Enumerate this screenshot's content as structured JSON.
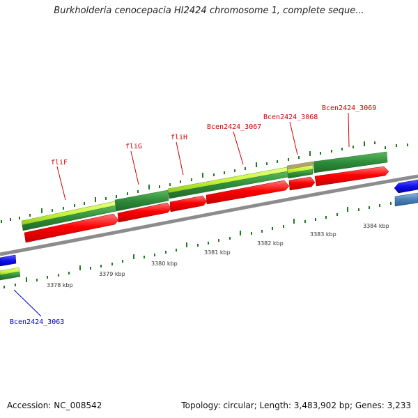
{
  "title": "Burkholderia cenocepacia HI2424 chromosome 1, complete seque...",
  "footer": {
    "accession": "Accession: NC_008542",
    "summary": "Topology: circular; Length: 3,483,902 bp; Genes: 3,233"
  },
  "colors": {
    "backbone": "#8c8c8c",
    "cds": "#ff0000",
    "gene_light": "#c8f53c",
    "gene_dark": "#2e8b3a",
    "minus_strand": "#1010ee",
    "minus_alt": "#4a7fb8",
    "label_plus": "#cc0000",
    "label_minus": "#0000cc",
    "tick": "#1e7a1e",
    "kbp_label": "#333333"
  },
  "scale": {
    "kbp_labels": [
      "3378 kbp",
      "3379 kbp",
      "3380 kbp",
      "3381 kbp",
      "3382 kbp",
      "3383 kbp",
      "3384 kbp"
    ]
  },
  "gene_labels": {
    "plus_strand": [
      "fliF",
      "fliG",
      "fliH",
      "Bcen2424_3067",
      "Bcen2424_3068",
      "Bcen2424_3069"
    ],
    "minus_strand": [
      "Bcen2424_3063"
    ]
  }
}
